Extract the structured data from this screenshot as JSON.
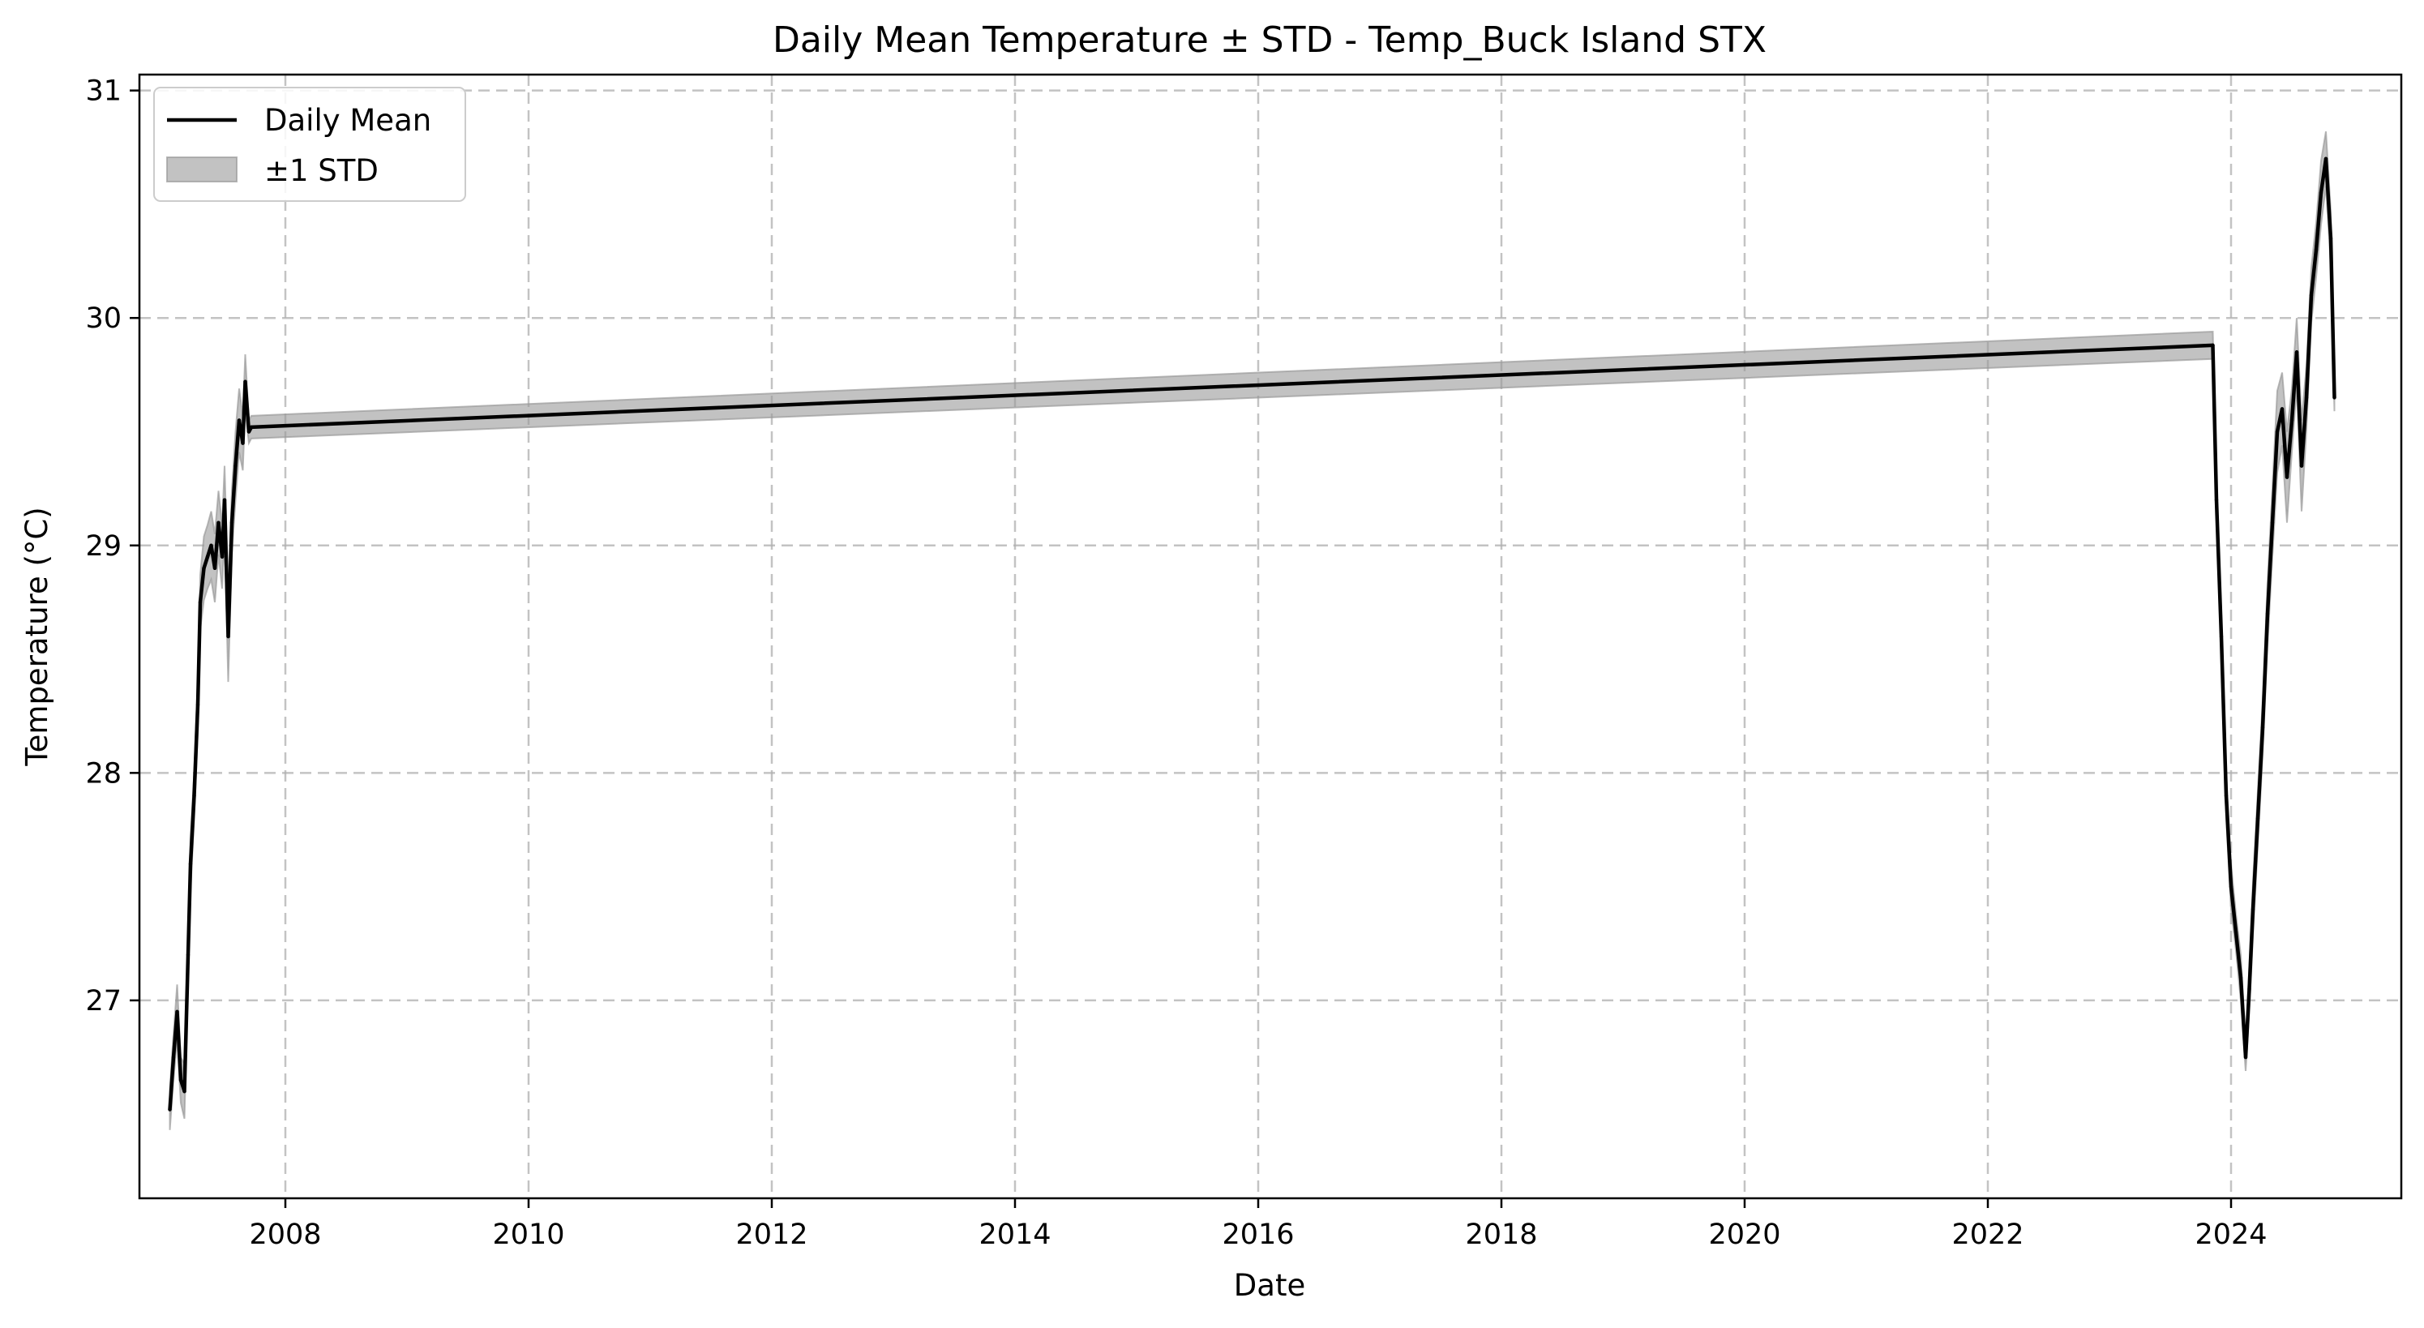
{
  "chart_data": {
    "type": "line",
    "title": "Daily Mean Temperature ± STD - Temp_Buck Island STX",
    "xlabel": "Date",
    "ylabel": "Temperature (°C)",
    "xlim": [
      2006.8,
      2025.4
    ],
    "ylim": [
      26.13,
      31.07
    ],
    "x_ticks": [
      2008,
      2010,
      2012,
      2014,
      2016,
      2018,
      2020,
      2022,
      2024
    ],
    "y_ticks": [
      27,
      28,
      29,
      30,
      31
    ],
    "grid": true,
    "legend": {
      "position": "upper-left",
      "entries": [
        "Daily Mean",
        "±1 STD"
      ]
    },
    "colors": {
      "mean": "#000000",
      "band": "#9a9a9a",
      "grid": "#b0b0b0"
    },
    "series": [
      {
        "name": "Daily Mean",
        "x": [
          2007.05,
          2007.08,
          2007.11,
          2007.14,
          2007.17,
          2007.2,
          2007.22,
          2007.25,
          2007.28,
          2007.3,
          2007.33,
          2007.36,
          2007.39,
          2007.42,
          2007.45,
          2007.48,
          2007.5,
          2007.53,
          2007.56,
          2007.59,
          2007.62,
          2007.65,
          2007.67,
          2007.7,
          2007.72,
          2023.85,
          2023.88,
          2023.92,
          2023.96,
          2024.0,
          2024.04,
          2024.08,
          2024.12,
          2024.15,
          2024.18,
          2024.22,
          2024.26,
          2024.3,
          2024.34,
          2024.38,
          2024.42,
          2024.46,
          2024.5,
          2024.54,
          2024.58,
          2024.62,
          2024.66,
          2024.7,
          2024.74,
          2024.78,
          2024.82,
          2024.85
        ],
        "y": [
          26.52,
          26.75,
          26.95,
          26.65,
          26.6,
          27.2,
          27.6,
          27.9,
          28.3,
          28.75,
          28.9,
          28.95,
          29.0,
          28.9,
          29.1,
          28.95,
          29.2,
          28.6,
          29.1,
          29.35,
          29.55,
          29.45,
          29.72,
          29.5,
          29.52,
          29.88,
          29.2,
          28.6,
          27.9,
          27.5,
          27.3,
          27.1,
          26.75,
          27.05,
          27.4,
          27.8,
          28.2,
          28.7,
          29.1,
          29.5,
          29.6,
          29.3,
          29.55,
          29.85,
          29.35,
          29.65,
          30.1,
          30.3,
          30.55,
          30.7,
          30.35,
          29.65
        ],
        "std": [
          0.09,
          0.1,
          0.12,
          0.1,
          0.12,
          0.1,
          0.12,
          0.1,
          0.12,
          0.12,
          0.14,
          0.14,
          0.15,
          0.15,
          0.14,
          0.14,
          0.15,
          0.2,
          0.14,
          0.15,
          0.14,
          0.12,
          0.12,
          0.05,
          0.05,
          0.06,
          0.08,
          0.1,
          0.1,
          0.1,
          0.08,
          0.1,
          0.06,
          0.1,
          0.12,
          0.12,
          0.12,
          0.14,
          0.15,
          0.18,
          0.16,
          0.2,
          0.14,
          0.15,
          0.2,
          0.14,
          0.12,
          0.12,
          0.14,
          0.12,
          0.12,
          0.06
        ]
      }
    ]
  }
}
